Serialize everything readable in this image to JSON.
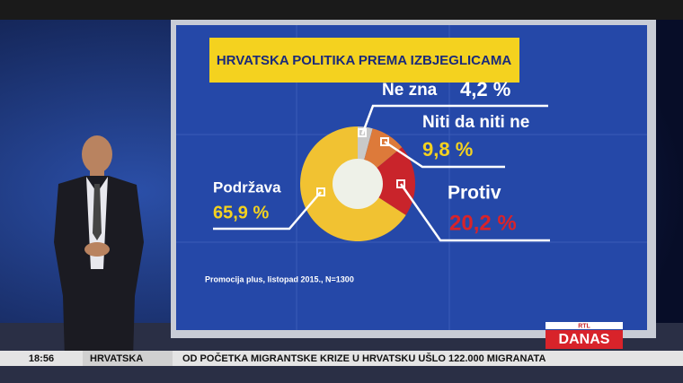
{
  "chart_data": {
    "type": "pie",
    "title": "HRVATSKA POLITIKA PREMA IZBJEGLICAMA",
    "categories": [
      "Ne zna",
      "Niti da niti ne",
      "Protiv",
      "Podržava"
    ],
    "values": [
      4.2,
      9.8,
      20.2,
      65.9
    ],
    "value_labels": [
      "4,2 %",
      "9,8 %",
      "20,2 %",
      "65,9 %"
    ],
    "colors": [
      "#c9c9c9",
      "#dd7a3a",
      "#c9242b",
      "#f1c232"
    ],
    "source": "Promocija plus, listopad 2015., N=1300"
  },
  "ticker": {
    "time": "18:56",
    "section": "HRVATSKA",
    "headline": "OD POČETKA MIGRANTSKE KRIZE U HRVATSKU UŠLO 122.000 MIGRANATA"
  },
  "logo": {
    "top": "RTL",
    "main": "DANAS"
  }
}
